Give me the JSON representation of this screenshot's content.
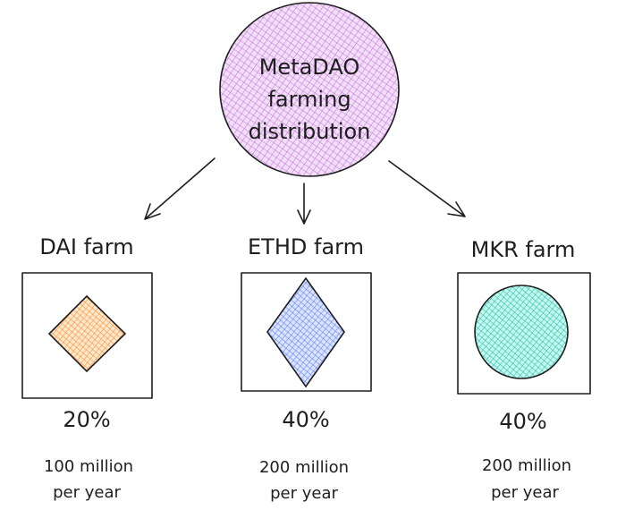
{
  "root": {
    "label_lines": [
      "MetaDAO",
      "farming",
      "distribution"
    ]
  },
  "farms": [
    {
      "name": "DAI farm",
      "share": "20%",
      "amount_lines": [
        "100 million",
        "per year"
      ]
    },
    {
      "name": "ETHD farm",
      "share": "40%",
      "amount_lines": [
        "200 million",
        "per year"
      ]
    },
    {
      "name": "MKR farm",
      "share": "40%",
      "amount_lines": [
        "200 million",
        "per year"
      ]
    }
  ]
}
